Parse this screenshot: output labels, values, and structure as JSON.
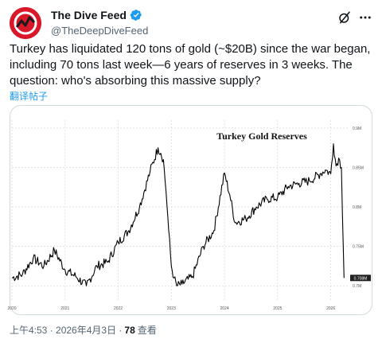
{
  "tweet": {
    "display_name": "The Dive Feed",
    "handle": "@TheDeepDiveFeed",
    "text": "Turkey has liquidated 120 tons of gold (~$20B) since the war began,\nincluding 70 tons last week—6 years of reserves in 3 weeks. The\nquestion: who's absorbing this massive supply?",
    "translate_label": "翻译帖子",
    "timestamp": "上午4:53 · 2026年4月3日 ·",
    "views_count": "78",
    "views_label": "查看",
    "icons": [
      "avatar-logo",
      "verified-badge-icon",
      "grok-icon",
      "more-icon"
    ],
    "colors": {
      "accent": "#1d9bf0",
      "avatar": "#d9182a",
      "text": "#0f1419",
      "muted": "#536471"
    }
  },
  "chart_data": {
    "type": "line",
    "title": "Turkey Gold Reserves",
    "x_ticks": [
      "2020",
      "2021",
      "2022",
      "2023",
      "2024",
      "2025",
      "2026"
    ],
    "y_ticks": [
      "0.9M",
      "0.85M",
      "0.8M",
      "0.75M",
      "0.7M"
    ],
    "last_value_label": "0.708M",
    "ylim": [
      0.68,
      0.91
    ],
    "xlim": [
      2020.0,
      2026.35
    ],
    "series_color": "#000000",
    "grid": true,
    "x": [
      2020.0,
      2020.2,
      2020.4,
      2020.6,
      2020.8,
      2021.0,
      2021.2,
      2021.4,
      2021.6,
      2021.8,
      2022.0,
      2022.2,
      2022.4,
      2022.6,
      2022.75,
      2022.8,
      2022.85,
      2022.9,
      2022.95,
      2023.0,
      2023.05,
      2023.1,
      2023.2,
      2023.4,
      2023.6,
      2023.8,
      2024.0,
      2024.1,
      2024.2,
      2024.4,
      2024.6,
      2024.8,
      2025.0,
      2025.2,
      2025.4,
      2025.6,
      2025.8,
      2025.9,
      2026.0,
      2026.05,
      2026.1,
      2026.15,
      2026.2,
      2026.25
    ],
    "y": [
      0.71,
      0.715,
      0.735,
      0.725,
      0.745,
      0.72,
      0.712,
      0.7,
      0.725,
      0.73,
      0.755,
      0.77,
      0.8,
      0.845,
      0.875,
      0.868,
      0.86,
      0.82,
      0.77,
      0.725,
      0.71,
      0.7,
      0.702,
      0.712,
      0.75,
      0.77,
      0.843,
      0.815,
      0.78,
      0.785,
      0.8,
      0.81,
      0.812,
      0.826,
      0.83,
      0.833,
      0.842,
      0.847,
      0.842,
      0.88,
      0.852,
      0.862,
      0.85,
      0.71
    ]
  }
}
